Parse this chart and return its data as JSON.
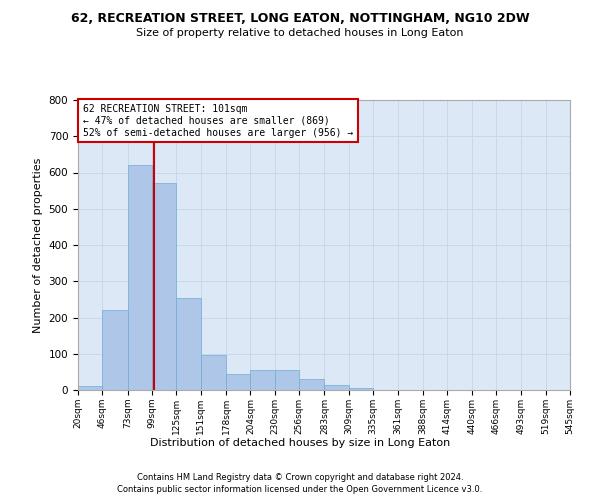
{
  "title": "62, RECREATION STREET, LONG EATON, NOTTINGHAM, NG10 2DW",
  "subtitle": "Size of property relative to detached houses in Long Eaton",
  "xlabel": "Distribution of detached houses by size in Long Eaton",
  "ylabel": "Number of detached properties",
  "footer_line1": "Contains HM Land Registry data © Crown copyright and database right 2024.",
  "footer_line2": "Contains public sector information licensed under the Open Government Licence v3.0.",
  "bin_edges": [
    20,
    46,
    73,
    99,
    125,
    151,
    178,
    204,
    230,
    256,
    283,
    309,
    335,
    361,
    388,
    414,
    440,
    466,
    493,
    519,
    545
  ],
  "bar_heights": [
    10,
    220,
    620,
    570,
    255,
    97,
    45,
    55,
    55,
    30,
    15,
    5,
    0,
    0,
    0,
    0,
    0,
    0,
    0,
    0
  ],
  "bar_color": "#aec6e8",
  "bar_edge_color": "#6baed6",
  "property_size": 101,
  "annotation_text": "62 RECREATION STREET: 101sqm\n← 47% of detached houses are smaller (869)\n52% of semi-detached houses are larger (956) →",
  "vline_color": "#cc0000",
  "annotation_box_color": "#ffffff",
  "annotation_box_edge_color": "#cc0000",
  "grid_color": "#c8d8e8",
  "background_color": "#dce8f5",
  "ylim": [
    0,
    800
  ],
  "yticks": [
    0,
    100,
    200,
    300,
    400,
    500,
    600,
    700,
    800
  ]
}
